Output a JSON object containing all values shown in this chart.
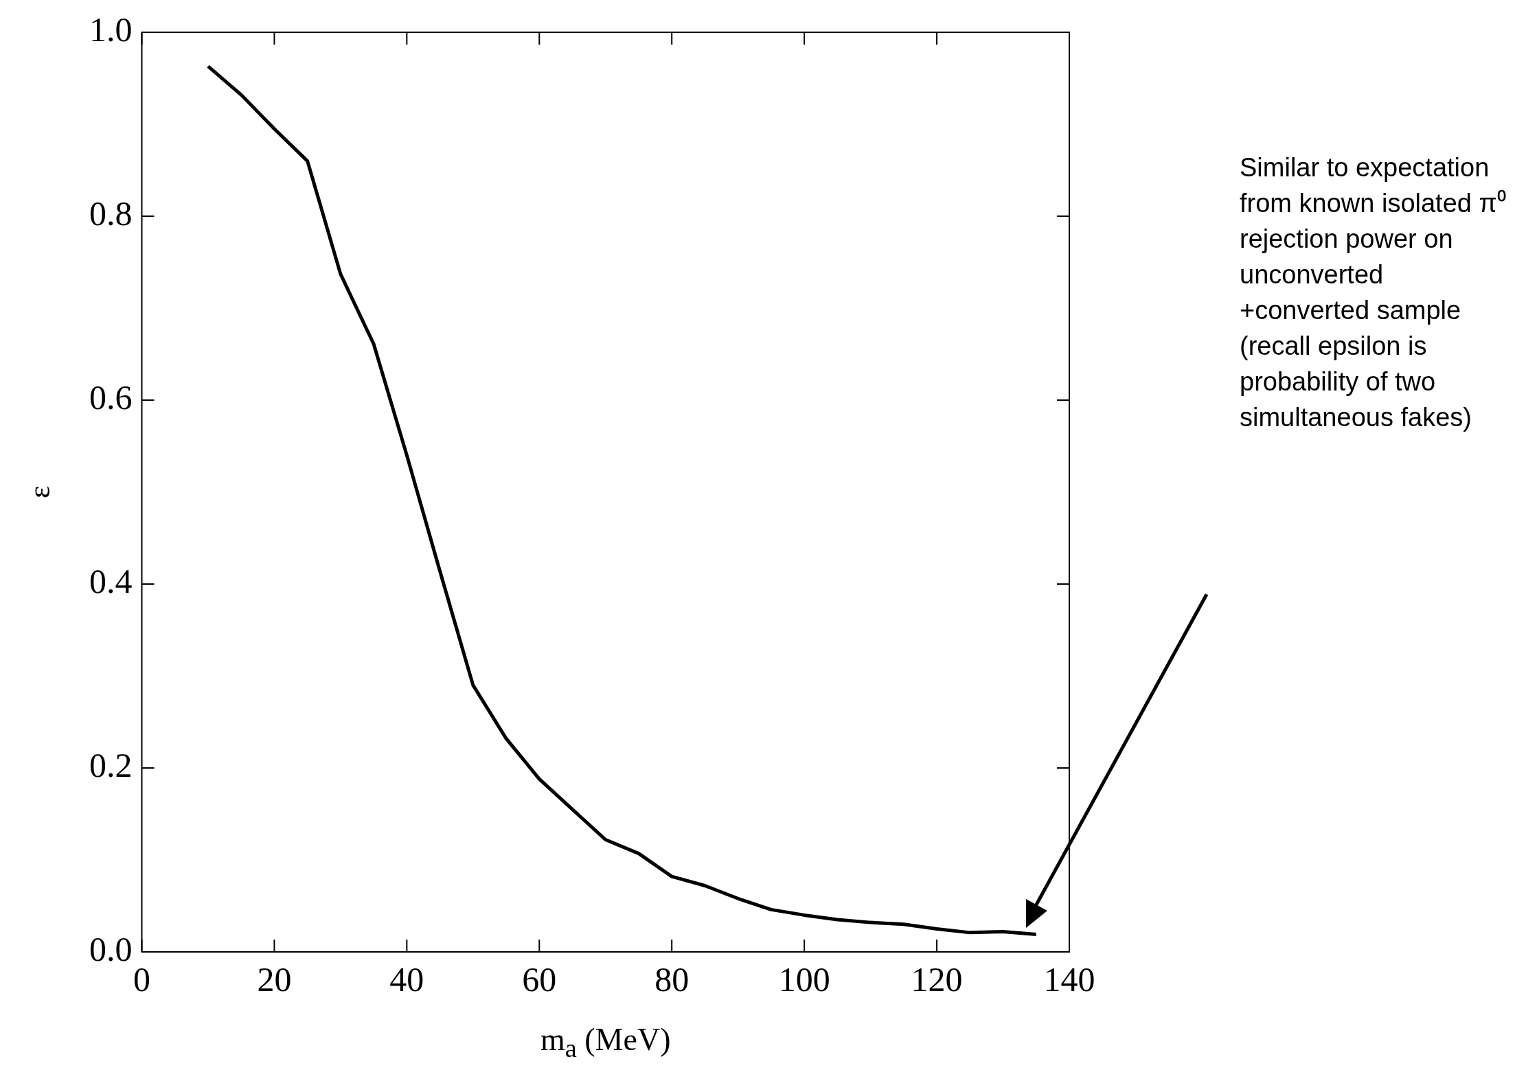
{
  "chart_data": {
    "type": "line",
    "xlabel": "m$_{a}$ (MeV)",
    "ylabel": "ε",
    "x": [
      10,
      15,
      20,
      25,
      30,
      35,
      40,
      45,
      50,
      55,
      60,
      65,
      70,
      75,
      80,
      85,
      90,
      95,
      100,
      105,
      110,
      115,
      120,
      125,
      130,
      135
    ],
    "series": [
      {
        "color": "#000000",
        "values": [
          0.963,
          0.932,
          0.895,
          0.86,
          0.737,
          0.661,
          0.54,
          0.414,
          0.29,
          0.232,
          0.188,
          0.155,
          0.122,
          0.107,
          0.082,
          0.072,
          0.058,
          0.046,
          0.04,
          0.035,
          0.032,
          0.03,
          0.025,
          0.021,
          0.022,
          0.019
        ]
      }
    ],
    "xlim": [
      0,
      140
    ],
    "xticks": [
      0,
      20,
      40,
      60,
      80,
      100,
      120,
      140
    ],
    "ylim": [
      0,
      1
    ],
    "yticks": [
      {
        "value": 0,
        "label": "0.0"
      },
      {
        "value": 0.2,
        "label": "0.2"
      },
      {
        "value": 0.4,
        "label": "0.4"
      },
      {
        "value": 0.6,
        "label": "0.6"
      },
      {
        "value": 0.8,
        "label": "0.8"
      },
      {
        "value": 1,
        "label": "1.0"
      }
    ],
    "marker": "none",
    "line_style": "solid",
    "legend": false,
    "annotations": [
      "Similar to expectation from known isolated π⁰ rejection power on unconverted +converted sample (recall epsilon is probability of two simultaneous fakes)"
    ]
  }
}
